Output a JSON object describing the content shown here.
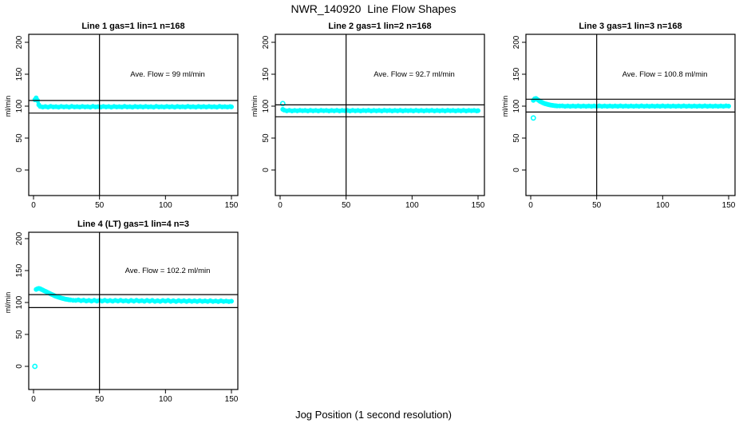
{
  "header": {
    "title": "NWR_140920  Line Flow Shapes"
  },
  "footer": {
    "xlabel": "Jog Position (1 second resolution)"
  },
  "colors": {
    "series": "#00FFFF",
    "axis": "#000000",
    "background": "#FFFFFF"
  },
  "chart_data": [
    {
      "type": "scatter",
      "title": "Line 1 gas=1 lin=1 n=168",
      "annotation": "Ave. Flow =  99  ml/min",
      "ave_flow_ml_min": 99,
      "n": 168,
      "ylabel": "ml/min",
      "x_ticks": [
        0,
        50,
        100,
        150
      ],
      "y_ticks": [
        0,
        50,
        100,
        150,
        200
      ],
      "xlim": [
        0,
        155
      ],
      "ylim": [
        -40,
        212
      ],
      "vline_x": 50,
      "hlines": [
        108.9,
        89.1
      ],
      "points": [
        [
          1,
          110
        ],
        [
          2,
          113
        ],
        [
          3,
          109
        ],
        [
          4,
          102
        ],
        [
          5,
          99.5
        ],
        [
          7,
          98.6
        ],
        [
          9,
          99.4
        ],
        [
          11,
          98.5
        ],
        [
          13,
          99.6
        ],
        [
          15,
          98.7
        ],
        [
          17,
          99.3
        ],
        [
          19,
          98.5
        ],
        [
          21,
          99.5
        ],
        [
          23,
          98.8
        ],
        [
          25,
          99.4
        ],
        [
          27,
          98.5
        ],
        [
          29,
          99.6
        ],
        [
          31,
          98.7
        ],
        [
          33,
          99.2
        ],
        [
          35,
          98.6
        ],
        [
          37,
          99.5
        ],
        [
          39,
          98.7
        ],
        [
          41,
          99.3
        ],
        [
          43,
          98.5
        ],
        [
          45,
          99.6
        ],
        [
          47,
          98.8
        ],
        [
          49,
          99.3
        ],
        [
          51,
          98.6
        ],
        [
          53,
          99.5
        ],
        [
          55,
          98.7
        ],
        [
          57,
          99.4
        ],
        [
          59,
          98.5
        ],
        [
          61,
          99.5
        ],
        [
          63,
          98.8
        ],
        [
          65,
          99.2
        ],
        [
          67,
          98.6
        ],
        [
          69,
          99.6
        ],
        [
          71,
          98.7
        ],
        [
          73,
          99.3
        ],
        [
          75,
          98.5
        ],
        [
          77,
          99.5
        ],
        [
          79,
          98.8
        ],
        [
          81,
          99.4
        ],
        [
          83,
          98.6
        ],
        [
          85,
          99.5
        ],
        [
          87,
          98.7
        ],
        [
          89,
          99.2
        ],
        [
          91,
          98.5
        ],
        [
          93,
          99.6
        ],
        [
          95,
          98.8
        ],
        [
          97,
          99.3
        ],
        [
          99,
          98.6
        ],
        [
          101,
          99.5
        ],
        [
          103,
          98.7
        ],
        [
          105,
          99.4
        ],
        [
          107,
          98.5
        ],
        [
          109,
          99.5
        ],
        [
          111,
          98.8
        ],
        [
          113,
          99.2
        ],
        [
          115,
          98.6
        ],
        [
          117,
          99.6
        ],
        [
          119,
          98.7
        ],
        [
          121,
          99.3
        ],
        [
          123,
          98.5
        ],
        [
          125,
          99.5
        ],
        [
          127,
          98.8
        ],
        [
          129,
          99.4
        ],
        [
          131,
          98.6
        ],
        [
          133,
          99.5
        ],
        [
          135,
          98.7
        ],
        [
          137,
          99.2
        ],
        [
          139,
          98.5
        ],
        [
          141,
          99.6
        ],
        [
          143,
          98.8
        ],
        [
          145,
          99.3
        ],
        [
          147,
          98.6
        ],
        [
          149,
          99.4
        ],
        [
          150,
          98.9
        ]
      ],
      "outliers": []
    },
    {
      "type": "scatter",
      "title": "Line 2 gas=1 lin=2 n=168",
      "annotation": "Ave. Flow =  92.7  ml/min",
      "ave_flow_ml_min": 92.7,
      "n": 168,
      "ylabel": "ml/min",
      "x_ticks": [
        0,
        50,
        100,
        150
      ],
      "y_ticks": [
        0,
        50,
        100,
        150,
        200
      ],
      "xlim": [
        0,
        155
      ],
      "ylim": [
        -40,
        212
      ],
      "vline_x": 50,
      "hlines": [
        101.97,
        83.43
      ],
      "points": [
        [
          2,
          95
        ],
        [
          3,
          93.8
        ],
        [
          5,
          92.6
        ],
        [
          7,
          93.4
        ],
        [
          9,
          92.5
        ],
        [
          11,
          93.3
        ],
        [
          13,
          92.6
        ],
        [
          15,
          93.5
        ],
        [
          17,
          92.7
        ],
        [
          19,
          93.2
        ],
        [
          21,
          92.5
        ],
        [
          23,
          93.4
        ],
        [
          25,
          92.6
        ],
        [
          27,
          93.3
        ],
        [
          29,
          92.5
        ],
        [
          31,
          93.4
        ],
        [
          33,
          92.7
        ],
        [
          35,
          93.2
        ],
        [
          37,
          92.5
        ],
        [
          39,
          93.3
        ],
        [
          41,
          92.6
        ],
        [
          43,
          93.4
        ],
        [
          45,
          92.5
        ],
        [
          47,
          93.2
        ],
        [
          49,
          92.7
        ],
        [
          51,
          93.3
        ],
        [
          53,
          92.5
        ],
        [
          55,
          93.4
        ],
        [
          57,
          92.6
        ],
        [
          59,
          93.2
        ],
        [
          61,
          92.5
        ],
        [
          63,
          93.3
        ],
        [
          65,
          92.7
        ],
        [
          67,
          93.4
        ],
        [
          69,
          92.5
        ],
        [
          71,
          93.2
        ],
        [
          73,
          92.6
        ],
        [
          75,
          93.3
        ],
        [
          77,
          92.5
        ],
        [
          79,
          93.4
        ],
        [
          81,
          92.7
        ],
        [
          83,
          93.2
        ],
        [
          85,
          92.5
        ],
        [
          87,
          93.3
        ],
        [
          89,
          92.6
        ],
        [
          91,
          93.4
        ],
        [
          93,
          92.5
        ],
        [
          95,
          93.2
        ],
        [
          97,
          92.7
        ],
        [
          99,
          93.3
        ],
        [
          101,
          92.5
        ],
        [
          103,
          93.4
        ],
        [
          105,
          92.6
        ],
        [
          107,
          93.2
        ],
        [
          109,
          92.5
        ],
        [
          111,
          93.3
        ],
        [
          113,
          92.7
        ],
        [
          115,
          93.4
        ],
        [
          117,
          92.5
        ],
        [
          119,
          93.2
        ],
        [
          121,
          92.6
        ],
        [
          123,
          93.3
        ],
        [
          125,
          92.5
        ],
        [
          127,
          93.4
        ],
        [
          129,
          92.7
        ],
        [
          131,
          93.2
        ],
        [
          133,
          92.5
        ],
        [
          135,
          93.3
        ],
        [
          137,
          92.6
        ],
        [
          139,
          93.4
        ],
        [
          141,
          92.5
        ],
        [
          143,
          93.2
        ],
        [
          145,
          92.7
        ],
        [
          147,
          93.3
        ],
        [
          149,
          92.5
        ],
        [
          150,
          93
        ]
      ],
      "outliers": [
        [
          2,
          104
        ]
      ]
    },
    {
      "type": "scatter",
      "title": "Line 3 gas=1 lin=3 n=168",
      "annotation": "Ave. Flow =  100.8  ml/min",
      "ave_flow_ml_min": 100.8,
      "n": 168,
      "ylabel": "ml/min",
      "x_ticks": [
        0,
        50,
        100,
        150
      ],
      "y_ticks": [
        0,
        50,
        100,
        150,
        200
      ],
      "xlim": [
        0,
        155
      ],
      "ylim": [
        -40,
        212
      ],
      "vline_x": 50,
      "hlines": [
        110.88,
        90.72
      ],
      "points": [
        [
          2,
          109
        ],
        [
          3,
          111.5
        ],
        [
          4,
          112
        ],
        [
          5,
          110.5
        ],
        [
          6,
          109
        ],
        [
          7,
          107.5
        ],
        [
          8,
          106.5
        ],
        [
          9,
          105.5
        ],
        [
          10,
          104.5
        ],
        [
          11,
          103.8
        ],
        [
          12,
          103.2
        ],
        [
          13,
          102.6
        ],
        [
          14,
          102.1
        ],
        [
          15,
          101.7
        ],
        [
          16,
          101.4
        ],
        [
          17,
          101.1
        ],
        [
          18,
          100.8
        ],
        [
          19,
          100.6
        ],
        [
          20,
          100.4
        ],
        [
          22,
          100.2
        ],
        [
          24,
          100.5
        ],
        [
          26,
          99.8
        ],
        [
          28,
          100.4
        ],
        [
          30,
          99.7
        ],
        [
          32,
          100.3
        ],
        [
          34,
          99.8
        ],
        [
          36,
          100.5
        ],
        [
          38,
          99.7
        ],
        [
          40,
          100.2
        ],
        [
          42,
          99.8
        ],
        [
          44,
          100.4
        ],
        [
          46,
          99.7
        ],
        [
          48,
          100.3
        ],
        [
          50,
          99.8
        ],
        [
          52,
          100.5
        ],
        [
          54,
          99.7
        ],
        [
          56,
          100.2
        ],
        [
          58,
          99.8
        ],
        [
          60,
          100.4
        ],
        [
          62,
          99.7
        ],
        [
          64,
          100.3
        ],
        [
          66,
          99.8
        ],
        [
          68,
          100.5
        ],
        [
          70,
          99.7
        ],
        [
          72,
          100.2
        ],
        [
          74,
          99.8
        ],
        [
          76,
          100.4
        ],
        [
          78,
          99.7
        ],
        [
          80,
          100.3
        ],
        [
          82,
          99.8
        ],
        [
          84,
          100.5
        ],
        [
          86,
          99.7
        ],
        [
          88,
          100.2
        ],
        [
          90,
          99.8
        ],
        [
          92,
          100.4
        ],
        [
          94,
          99.7
        ],
        [
          96,
          100.3
        ],
        [
          98,
          99.8
        ],
        [
          100,
          100.5
        ],
        [
          102,
          99.7
        ],
        [
          104,
          100.2
        ],
        [
          106,
          99.8
        ],
        [
          108,
          100.4
        ],
        [
          110,
          99.7
        ],
        [
          112,
          100.3
        ],
        [
          114,
          99.8
        ],
        [
          116,
          100.5
        ],
        [
          118,
          99.7
        ],
        [
          120,
          100.2
        ],
        [
          122,
          99.8
        ],
        [
          124,
          100.4
        ],
        [
          126,
          99.7
        ],
        [
          128,
          100.3
        ],
        [
          130,
          99.8
        ],
        [
          132,
          100.5
        ],
        [
          134,
          99.7
        ],
        [
          136,
          100.2
        ],
        [
          138,
          99.8
        ],
        [
          140,
          100.4
        ],
        [
          142,
          99.7
        ],
        [
          144,
          100.3
        ],
        [
          146,
          99.8
        ],
        [
          148,
          100.5
        ],
        [
          150,
          100
        ]
      ],
      "outliers": [
        [
          2,
          81.5
        ]
      ]
    },
    {
      "type": "scatter",
      "title": "Line 4 (LT) gas=1 lin=4 n=3",
      "annotation": "Ave. Flow =  102.2  ml/min",
      "ave_flow_ml_min": 102.2,
      "n": 3,
      "ylabel": "ml/min",
      "x_ticks": [
        0,
        50,
        100,
        150
      ],
      "y_ticks": [
        0,
        50,
        100,
        150,
        200
      ],
      "xlim": [
        0,
        155
      ],
      "ylim": [
        -40,
        212
      ],
      "vline_x": 50,
      "hlines": [
        112.42,
        91.98
      ],
      "points": [
        [
          2,
          120.5
        ],
        [
          3,
          121.5
        ],
        [
          4,
          122
        ],
        [
          5,
          121.5
        ],
        [
          6,
          120.5
        ],
        [
          7,
          119.5
        ],
        [
          8,
          118.5
        ],
        [
          9,
          117.5
        ],
        [
          10,
          116.5
        ],
        [
          11,
          115.5
        ],
        [
          12,
          114.5
        ],
        [
          13,
          113.5
        ],
        [
          14,
          112.5
        ],
        [
          15,
          111.5
        ],
        [
          16,
          110.5
        ],
        [
          17,
          109.8
        ],
        [
          18,
          109
        ],
        [
          19,
          108.3
        ],
        [
          20,
          107.6
        ],
        [
          21,
          107
        ],
        [
          22,
          106.4
        ],
        [
          23,
          105.9
        ],
        [
          24,
          105.4
        ],
        [
          25,
          105
        ],
        [
          26,
          104.6
        ],
        [
          27,
          104.3
        ],
        [
          28,
          104
        ],
        [
          30,
          103.5
        ],
        [
          32,
          103.2
        ],
        [
          34,
          104
        ],
        [
          36,
          102.8
        ],
        [
          38,
          103.6
        ],
        [
          40,
          102.4
        ],
        [
          42,
          103.3
        ],
        [
          44,
          102.2
        ],
        [
          46,
          103.5
        ],
        [
          48,
          102.3
        ],
        [
          50,
          103.2
        ],
        [
          52,
          102.1
        ],
        [
          54,
          103.4
        ],
        [
          56,
          102.2
        ],
        [
          58,
          103.1
        ],
        [
          60,
          102
        ],
        [
          62,
          103.3
        ],
        [
          64,
          102.1
        ],
        [
          66,
          103.5
        ],
        [
          68,
          102.2
        ],
        [
          70,
          103
        ],
        [
          72,
          101.9
        ],
        [
          74,
          103.2
        ],
        [
          76,
          102
        ],
        [
          78,
          103.4
        ],
        [
          80,
          102.1
        ],
        [
          82,
          103
        ],
        [
          84,
          101.9
        ],
        [
          86,
          103.2
        ],
        [
          88,
          102
        ],
        [
          90,
          103.3
        ],
        [
          92,
          101.8
        ],
        [
          94,
          102.9
        ],
        [
          96,
          101.7
        ],
        [
          98,
          103.1
        ],
        [
          100,
          102
        ],
        [
          102,
          103.2
        ],
        [
          104,
          101.8
        ],
        [
          106,
          102.8
        ],
        [
          108,
          101.6
        ],
        [
          110,
          103
        ],
        [
          112,
          101.9
        ],
        [
          114,
          102.7
        ],
        [
          116,
          101.6
        ],
        [
          118,
          102.9
        ],
        [
          120,
          101.8
        ],
        [
          122,
          102.6
        ],
        [
          124,
          101.5
        ],
        [
          126,
          102.8
        ],
        [
          128,
          101.7
        ],
        [
          130,
          102.5
        ],
        [
          132,
          101.5
        ],
        [
          134,
          102.7
        ],
        [
          136,
          101.6
        ],
        [
          138,
          102.4
        ],
        [
          140,
          101.4
        ],
        [
          142,
          102.6
        ],
        [
          144,
          101.5
        ],
        [
          146,
          102.3
        ],
        [
          148,
          101.4
        ],
        [
          150,
          102
        ]
      ],
      "outliers": [
        [
          1,
          0
        ]
      ]
    }
  ]
}
